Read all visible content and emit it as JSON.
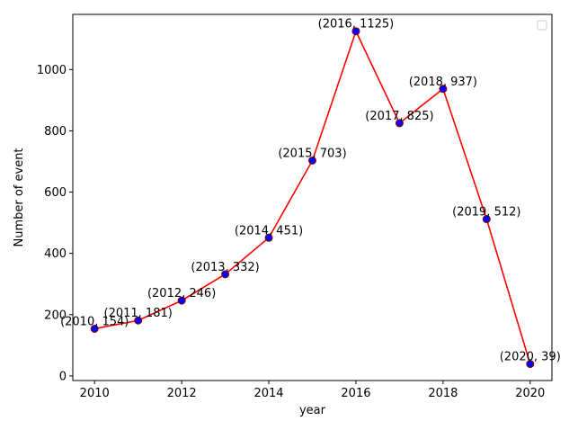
{
  "chart_data": {
    "type": "line",
    "title": "",
    "xlabel": "year",
    "ylabel": "Number of event",
    "x": [
      2010,
      2011,
      2012,
      2013,
      2014,
      2015,
      2016,
      2017,
      2018,
      2019,
      2020
    ],
    "series": [
      {
        "values": [
          154,
          181,
          246,
          332,
          451,
          703,
          1125,
          825,
          937,
          512,
          39
        ],
        "line_color": "#ff0000",
        "marker_face": "#0000ff",
        "marker_edge": "#8b0000"
      }
    ],
    "point_labels": [
      "(2010, 154)",
      "(2011, 181)",
      "(2012, 246)",
      "(2013, 332)",
      "(2014, 451)",
      "(2015, 703)",
      "(2016, 1125)",
      "(2017, 825)",
      "(2018, 937)",
      "(2019, 512)",
      "(2020, 39)"
    ],
    "xticks": [
      2010,
      2012,
      2014,
      2016,
      2018,
      2020
    ],
    "yticks": [
      0,
      200,
      400,
      600,
      800,
      1000
    ],
    "xlim": [
      2009.5,
      2020.5
    ],
    "ylim": [
      -15,
      1180
    ],
    "grid": false,
    "legend": {
      "placement": "top-right",
      "entries": []
    }
  }
}
